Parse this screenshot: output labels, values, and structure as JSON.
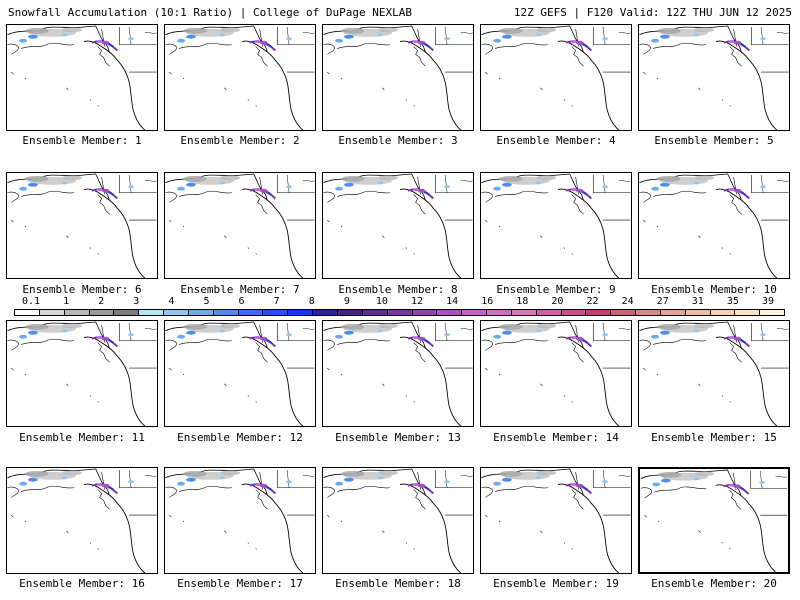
{
  "header": {
    "left": "Snowfall Accumulation (10:1 Ratio) | College of DuPage NEXLAB",
    "right": "12Z GEFS | F120 Valid: 12Z THU JUN 12 2025"
  },
  "panels": [
    {
      "label": "Ensemble Member: 1"
    },
    {
      "label": "Ensemble Member: 2"
    },
    {
      "label": "Ensemble Member: 3"
    },
    {
      "label": "Ensemble Member: 4"
    },
    {
      "label": "Ensemble Member: 5"
    },
    {
      "label": "Ensemble Member: 6"
    },
    {
      "label": "Ensemble Member: 7"
    },
    {
      "label": "Ensemble Member: 8"
    },
    {
      "label": "Ensemble Member: 9"
    },
    {
      "label": "Ensemble Member: 10"
    },
    {
      "label": "Ensemble Member: 11"
    },
    {
      "label": "Ensemble Member: 12"
    },
    {
      "label": "Ensemble Member: 13"
    },
    {
      "label": "Ensemble Member: 14"
    },
    {
      "label": "Ensemble Member: 15"
    },
    {
      "label": "Ensemble Member: 16"
    },
    {
      "label": "Ensemble Member: 17"
    },
    {
      "label": "Ensemble Member: 18"
    },
    {
      "label": "Ensemble Member: 19"
    },
    {
      "label": "Ensemble Member: 20"
    }
  ],
  "selected_member": 20,
  "legend": {
    "ticks": [
      "0.1",
      "1",
      "2",
      "3",
      "4",
      "5",
      "6",
      "7",
      "8",
      "9",
      "10",
      "12",
      "14",
      "16",
      "18",
      "20",
      "22",
      "24",
      "27",
      "31",
      "35",
      "39"
    ],
    "colors": [
      "#ffffff",
      "#d6d6d6",
      "#b8b8b8",
      "#9a9a9a",
      "#7d7d7d",
      "#aeeaf2",
      "#8fc8f0",
      "#6eaaf0",
      "#4f8cf0",
      "#3a6ef2",
      "#2550f0",
      "#1238e8",
      "#2c1f9a",
      "#46208e",
      "#5f2a9c",
      "#7a33aa",
      "#9540b8",
      "#b04cc4",
      "#c85ccc",
      "#d96ac8",
      "#e070b8",
      "#d75ca4",
      "#cf4a8e",
      "#c63a78",
      "#d0607a",
      "#dc8486",
      "#e6a292",
      "#f0bea2",
      "#f6d2b2",
      "#fae2c6",
      "#fdf0dc"
    ]
  }
}
